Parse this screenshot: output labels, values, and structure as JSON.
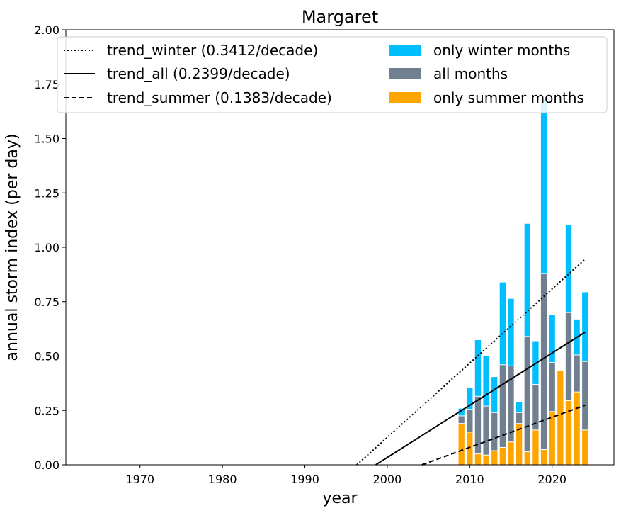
{
  "chart_data": {
    "type": "bar",
    "title": "Margaret",
    "xlabel": "year",
    "ylabel": "annual storm index (per day)",
    "xlim": [
      1961,
      2027.5
    ],
    "ylim": [
      0,
      2.0
    ],
    "xticks": [
      1970,
      1980,
      1990,
      2000,
      2010,
      2020
    ],
    "yticks": [
      "0.00",
      "0.25",
      "0.50",
      "0.75",
      "1.00",
      "1.25",
      "1.50",
      "1.75",
      "2.00"
    ],
    "grid": false,
    "legend_position": "top",
    "colors": {
      "winter": "#00bfff",
      "all": "#708090",
      "summer": "#ffa500",
      "trend": "#000000",
      "bar_edge": "#ffffff"
    },
    "years": [
      2009,
      2010,
      2011,
      2012,
      2013,
      2014,
      2015,
      2016,
      2017,
      2018,
      2019,
      2020,
      2021,
      2022,
      2023,
      2024
    ],
    "series": [
      {
        "name": "only winter months",
        "key": "winter",
        "values": [
          0.26,
          0.355,
          0.575,
          0.5,
          0.405,
          0.84,
          0.765,
          0.29,
          1.11,
          0.57,
          1.68,
          0.69,
          0.36,
          1.105,
          0.67,
          0.795
        ]
      },
      {
        "name": "all months",
        "key": "all",
        "values": [
          0.225,
          0.255,
          0.315,
          0.27,
          0.24,
          0.46,
          0.455,
          0.24,
          0.59,
          0.37,
          0.88,
          0.47,
          0.4,
          0.7,
          0.505,
          0.475
        ]
      },
      {
        "name": "only summer months",
        "key": "summer",
        "values": [
          0.19,
          0.15,
          0.05,
          0.045,
          0.065,
          0.08,
          0.105,
          0.19,
          0.06,
          0.16,
          0.07,
          0.245,
          0.435,
          0.295,
          0.335,
          0.16
        ]
      }
    ],
    "trends": [
      {
        "name": "trend_winter (0.3412/decade)",
        "style": "dotted",
        "x": [
          1996.3,
          2024
        ],
        "y": [
          0,
          0.945
        ]
      },
      {
        "name": "trend_all (0.2399/decade)",
        "style": "solid",
        "x": [
          1998.6,
          2024
        ],
        "y": [
          0,
          0.61
        ]
      },
      {
        "name": "trend_summer (0.1383/decade)",
        "style": "dashed",
        "x": [
          2004.2,
          2024
        ],
        "y": [
          0,
          0.274
        ]
      }
    ]
  }
}
